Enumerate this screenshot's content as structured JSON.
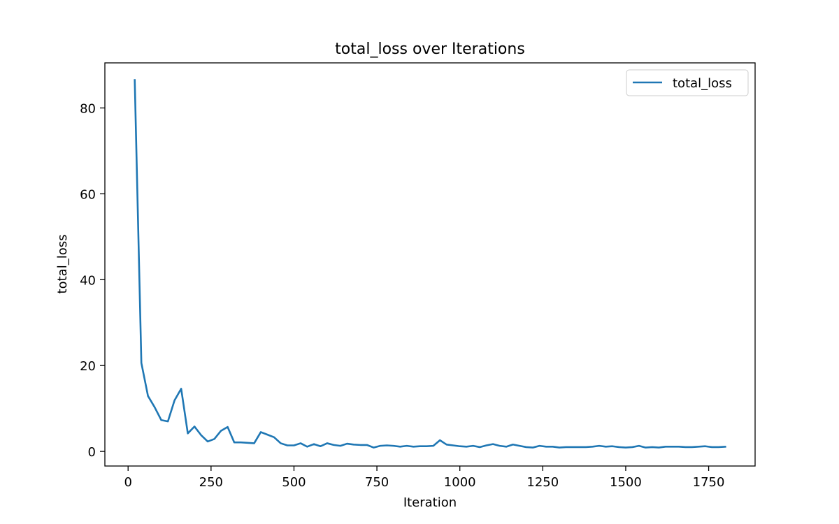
{
  "chart_data": {
    "type": "line",
    "title": "total_loss over Iterations",
    "xlabel": "Iteration",
    "ylabel": "total_loss",
    "xlim": [
      -70,
      1890
    ],
    "ylim": [
      -3.4,
      90.5
    ],
    "x_ticks": [
      0,
      250,
      500,
      750,
      1000,
      1250,
      1500,
      1750
    ],
    "x_tick_labels": [
      "0",
      "250",
      "500",
      "750",
      "1000",
      "1250",
      "1500",
      "1750"
    ],
    "y_ticks": [
      0,
      20,
      40,
      60,
      80
    ],
    "y_tick_labels": [
      "0",
      "20",
      "40",
      "60",
      "80"
    ],
    "grid": false,
    "legend": {
      "position": "top-right"
    },
    "series": [
      {
        "name": "total_loss",
        "color": "#1f77b4",
        "x": [
          20,
          40,
          60,
          80,
          100,
          120,
          140,
          160,
          180,
          200,
          220,
          240,
          260,
          280,
          300,
          320,
          340,
          360,
          380,
          400,
          420,
          440,
          460,
          480,
          500,
          520,
          540,
          560,
          580,
          600,
          620,
          640,
          660,
          680,
          700,
          720,
          740,
          760,
          780,
          800,
          820,
          840,
          860,
          880,
          900,
          920,
          940,
          960,
          980,
          1000,
          1020,
          1040,
          1060,
          1080,
          1100,
          1120,
          1140,
          1160,
          1180,
          1200,
          1220,
          1240,
          1260,
          1280,
          1300,
          1320,
          1340,
          1360,
          1380,
          1400,
          1420,
          1440,
          1460,
          1480,
          1500,
          1520,
          1540,
          1560,
          1580,
          1600,
          1620,
          1640,
          1660,
          1680,
          1700,
          1720,
          1740,
          1760,
          1780,
          1800
        ],
        "y": [
          86.5,
          20.6,
          12.9,
          10.3,
          7.3,
          7.0,
          11.9,
          14.6,
          4.2,
          5.8,
          3.8,
          2.3,
          2.9,
          4.8,
          5.7,
          2.1,
          2.1,
          2.0,
          1.9,
          4.5,
          3.9,
          3.3,
          1.9,
          1.4,
          1.4,
          1.9,
          1.1,
          1.7,
          1.2,
          1.9,
          1.5,
          1.3,
          1.8,
          1.6,
          1.5,
          1.5,
          0.9,
          1.3,
          1.4,
          1.3,
          1.1,
          1.3,
          1.1,
          1.2,
          1.2,
          1.3,
          2.6,
          1.6,
          1.4,
          1.2,
          1.1,
          1.3,
          1.0,
          1.4,
          1.7,
          1.3,
          1.1,
          1.6,
          1.3,
          1.0,
          0.9,
          1.3,
          1.1,
          1.1,
          0.9,
          1.0,
          1.0,
          1.0,
          1.0,
          1.1,
          1.3,
          1.1,
          1.2,
          1.0,
          0.9,
          1.0,
          1.3,
          0.9,
          1.0,
          0.9,
          1.1,
          1.1,
          1.1,
          1.0,
          1.0,
          1.1,
          1.2,
          1.0,
          1.0,
          1.1
        ]
      }
    ]
  }
}
